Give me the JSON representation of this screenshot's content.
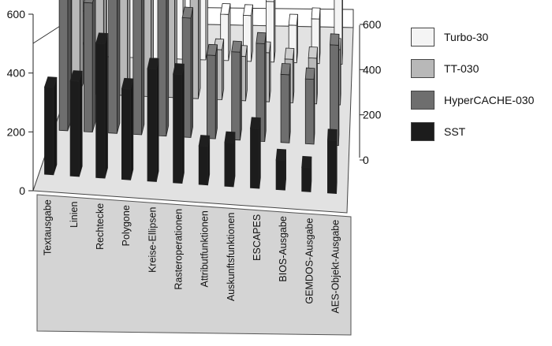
{
  "chart_data": {
    "type": "bar",
    "title": "",
    "xlabel": "",
    "ylabel": "",
    "ylim": [
      0,
      600
    ],
    "y_ticks": [
      "0",
      "200",
      "400",
      "600"
    ],
    "categories": [
      "Textausgabe",
      "Linien",
      "Rechtecke",
      "Polygone",
      "Kreise-Ellipsen",
      "Rasteroperationen",
      "Attributfunktionen",
      "Auskunftsfunktionen",
      "ESCAPES",
      "BIOS-Ausgabe",
      "GEMDOS-Ausgabe",
      "AES-Objekt-Ausgabe"
    ],
    "series": [
      {
        "name": "Turbo-30",
        "color": "#f4f4f4",
        "values": [
          540,
          420,
          600,
          490,
          540,
          620,
          180,
          180,
          240,
          150,
          180,
          290
        ]
      },
      {
        "name": "TT-030",
        "color": "#b8b8b8",
        "values": [
          400,
          390,
          440,
          450,
          420,
          580,
          190,
          170,
          190,
          170,
          180,
          220
        ]
      },
      {
        "name": "HyperCACHE-030",
        "color": "#6e6e6e",
        "values": [
          490,
          460,
          540,
          570,
          580,
          440,
          310,
          330,
          370,
          260,
          250,
          390
        ]
      },
      {
        "name": "SST",
        "color": "#1c1c1c",
        "values": [
          300,
          330,
          470,
          320,
          400,
          390,
          140,
          160,
          220,
          110,
          90,
          200
        ]
      }
    ],
    "legend_position": "right",
    "grid": false,
    "style": "3d-clustered-columns"
  }
}
